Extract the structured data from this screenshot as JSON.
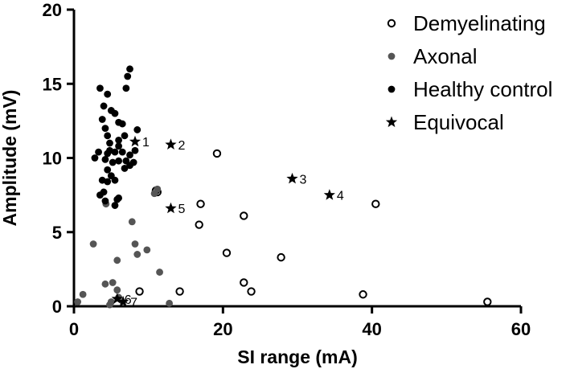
{
  "chart_data": {
    "type": "scatter",
    "title": "",
    "xlabel": "SI range (mA)",
    "ylabel": "Amplitude (mV)",
    "xlim": [
      0,
      60
    ],
    "ylim": [
      0,
      20
    ],
    "xticks": [
      0,
      20,
      40,
      60
    ],
    "yticks": [
      0,
      5,
      10,
      15,
      20
    ],
    "grid": false,
    "legend_position": "top-right",
    "colors": {
      "demyelinating": "#000000",
      "axonal": "#555555",
      "healthy": "#000000",
      "equivocal": "#000000"
    },
    "series": [
      {
        "name": "Demyelinating",
        "marker": "open-circle",
        "points": [
          [
            19.2,
            10.3
          ],
          [
            17,
            6.9
          ],
          [
            16.8,
            5.5
          ],
          [
            22.8,
            6.1
          ],
          [
            40.5,
            6.9
          ],
          [
            20.5,
            3.6
          ],
          [
            27.8,
            3.3
          ],
          [
            22.8,
            1.6
          ],
          [
            23.8,
            1.0
          ],
          [
            14.2,
            1.0
          ],
          [
            8.8,
            1.0
          ],
          [
            38.8,
            0.8
          ],
          [
            55.5,
            0.3
          ],
          [
            11.2,
            7.7
          ],
          [
            11.0,
            7.8
          ]
        ]
      },
      {
        "name": "Axonal",
        "marker": "filled-circle",
        "points": [
          [
            0.5,
            0.3
          ],
          [
            1.2,
            0.8
          ],
          [
            2.6,
            4.2
          ],
          [
            4.2,
            1.5
          ],
          [
            5.2,
            1.6
          ],
          [
            5.8,
            1.1
          ],
          [
            5.0,
            0.3
          ],
          [
            6.0,
            0.6
          ],
          [
            4.8,
            0.1
          ],
          [
            8.5,
            3.5
          ],
          [
            8.2,
            4.2
          ],
          [
            9.8,
            3.8
          ],
          [
            11.5,
            2.3
          ],
          [
            12.8,
            0.2
          ],
          [
            5.8,
            3.1
          ],
          [
            4.3,
            6.9
          ],
          [
            7.8,
            5.7
          ],
          [
            11.2,
            7.9
          ],
          [
            10.8,
            7.6
          ]
        ]
      },
      {
        "name": "Healthy control",
        "marker": "filled-circle",
        "points": [
          [
            3.5,
            14.7
          ],
          [
            4.5,
            14.3
          ],
          [
            4.0,
            13.5
          ],
          [
            5.0,
            13.2
          ],
          [
            6.0,
            12.4
          ],
          [
            6.5,
            12.3
          ],
          [
            3.8,
            12.6
          ],
          [
            4.2,
            12.0
          ],
          [
            4.5,
            11.5
          ],
          [
            7.5,
            16.0
          ],
          [
            7.2,
            15.5
          ],
          [
            7.0,
            14.7
          ],
          [
            5.5,
            13.0
          ],
          [
            4.8,
            11.0
          ],
          [
            6.0,
            11.2
          ],
          [
            8.5,
            11.9
          ],
          [
            8.2,
            10.5
          ],
          [
            2.8,
            10.0
          ],
          [
            3.3,
            10.4
          ],
          [
            4.5,
            10.3
          ],
          [
            5.5,
            10.4
          ],
          [
            6.5,
            10.4
          ],
          [
            7.5,
            10.2
          ],
          [
            4.2,
            9.9
          ],
          [
            5.2,
            9.7
          ],
          [
            6.0,
            9.8
          ],
          [
            7.0,
            9.8
          ],
          [
            8.0,
            9.7
          ],
          [
            4.5,
            9.2
          ],
          [
            6.8,
            9.3
          ],
          [
            5.0,
            8.8
          ],
          [
            3.8,
            8.5
          ],
          [
            4.5,
            8.4
          ],
          [
            4.0,
            7.7
          ],
          [
            3.5,
            7.5
          ],
          [
            6.0,
            7.3
          ],
          [
            5.8,
            7.2
          ],
          [
            5.5,
            6.8
          ],
          [
            4.2,
            7.1
          ],
          [
            6.0,
            10.8
          ],
          [
            7.5,
            9.5
          ],
          [
            4.8,
            10.5
          ],
          [
            5.5,
            8.5
          ],
          [
            6.8,
            11.5
          ]
        ]
      },
      {
        "name": "Equivocal",
        "marker": "star",
        "points": [
          {
            "x": 8.2,
            "y": 11.1,
            "label": "1"
          },
          {
            "x": 13.0,
            "y": 10.9,
            "label": "2"
          },
          {
            "x": 29.3,
            "y": 8.6,
            "label": "3"
          },
          {
            "x": 34.3,
            "y": 7.5,
            "label": "4"
          },
          {
            "x": 13.0,
            "y": 6.6,
            "label": "5"
          },
          {
            "x": 5.8,
            "y": 0.5,
            "label": "6"
          },
          {
            "x": 6.6,
            "y": 0.3,
            "label": "7"
          }
        ]
      }
    ]
  }
}
